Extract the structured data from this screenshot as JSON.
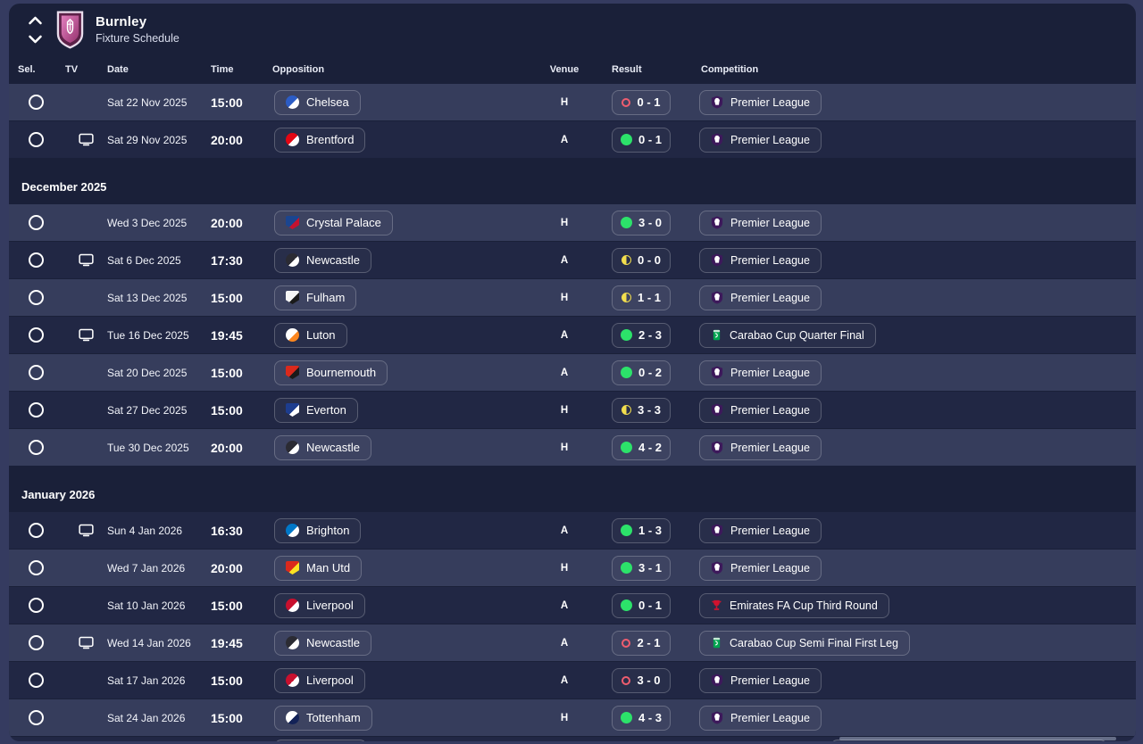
{
  "header": {
    "team_name": "Burnley",
    "subtitle": "Fixture Schedule"
  },
  "columns": {
    "sel": "Sel.",
    "tv": "TV",
    "date": "Date",
    "time": "Time",
    "opposition": "Opposition",
    "venue": "Venue",
    "result": "Result",
    "competition": "Competition"
  },
  "colors": {
    "outer": "#353b60",
    "panel": "#1a2039",
    "row_light": "#363d5c",
    "row_dark": "#212744",
    "win": "#2ce26a",
    "draw": "#f2de4e",
    "loss": "#ef5d6f",
    "premier_league": "#3d195b",
    "carabao_cup": "#00a550",
    "fa_cup": "#d2122e",
    "burnley_claret": "#5c2148",
    "burnley_pink": "#c9509a"
  },
  "table": {
    "items": [
      {
        "type": "match",
        "tv": false,
        "date": "Sat 22 Nov 2025",
        "time": "15:00",
        "opposition": "Chelsea",
        "venue": "H",
        "result": {
          "outcome": "loss",
          "score": "0 - 1"
        },
        "competition": "Premier League",
        "competition_icon": "premier-league",
        "crest": {
          "shape": "circle",
          "c1": "#2c5cc5",
          "c2": "#ffffff"
        }
      },
      {
        "type": "match",
        "tv": true,
        "date": "Sat 29 Nov 2025",
        "time": "20:00",
        "opposition": "Brentford",
        "venue": "A",
        "result": {
          "outcome": "win",
          "score": "0 - 1"
        },
        "competition": "Premier League",
        "competition_icon": "premier-league",
        "crest": {
          "shape": "circle",
          "c1": "#e30613",
          "c2": "#ffffff"
        }
      },
      {
        "type": "section",
        "label": "December 2025"
      },
      {
        "type": "match",
        "tv": false,
        "date": "Wed 3 Dec 2025",
        "time": "20:00",
        "opposition": "Crystal Palace",
        "venue": "H",
        "result": {
          "outcome": "win",
          "score": "3 - 0"
        },
        "competition": "Premier League",
        "competition_icon": "premier-league",
        "crest": {
          "shape": "shield",
          "c1": "#1b458f",
          "c2": "#c4122e"
        }
      },
      {
        "type": "match",
        "tv": true,
        "date": "Sat 6 Dec 2025",
        "time": "17:30",
        "opposition": "Newcastle",
        "venue": "A",
        "result": {
          "outcome": "draw",
          "score": "0 - 0"
        },
        "competition": "Premier League",
        "competition_icon": "premier-league",
        "crest": {
          "shape": "circle",
          "c1": "#2b2b33",
          "c2": "#ffffff"
        }
      },
      {
        "type": "match",
        "tv": false,
        "date": "Sat 13 Dec 2025",
        "time": "15:00",
        "opposition": "Fulham",
        "venue": "H",
        "result": {
          "outcome": "draw",
          "score": "1 - 1"
        },
        "competition": "Premier League",
        "competition_icon": "premier-league",
        "crest": {
          "shape": "shield",
          "c1": "#f5f5f5",
          "c2": "#1a1a1a"
        }
      },
      {
        "type": "match",
        "tv": true,
        "date": "Tue 16 Dec 2025",
        "time": "19:45",
        "opposition": "Luton",
        "venue": "A",
        "result": {
          "outcome": "win",
          "score": "2 - 3"
        },
        "competition": "Carabao Cup Quarter Final",
        "competition_icon": "carabao-cup",
        "crest": {
          "shape": "circle",
          "c1": "#ffffff",
          "c2": "#fb861f"
        }
      },
      {
        "type": "match",
        "tv": false,
        "date": "Sat 20 Dec 2025",
        "time": "15:00",
        "opposition": "Bournemouth",
        "venue": "A",
        "result": {
          "outcome": "win",
          "score": "0 - 2"
        },
        "competition": "Premier League",
        "competition_icon": "premier-league",
        "crest": {
          "shape": "shield",
          "c1": "#da291c",
          "c2": "#1a1a1a"
        }
      },
      {
        "type": "match",
        "tv": false,
        "date": "Sat 27 Dec 2025",
        "time": "15:00",
        "opposition": "Everton",
        "venue": "H",
        "result": {
          "outcome": "draw",
          "score": "3 - 3"
        },
        "competition": "Premier League",
        "competition_icon": "premier-league",
        "crest": {
          "shape": "shield",
          "c1": "#1d3d8f",
          "c2": "#ffffff"
        }
      },
      {
        "type": "match",
        "tv": false,
        "date": "Tue 30 Dec 2025",
        "time": "20:00",
        "opposition": "Newcastle",
        "venue": "H",
        "result": {
          "outcome": "win",
          "score": "4 - 2"
        },
        "competition": "Premier League",
        "competition_icon": "premier-league",
        "crest": {
          "shape": "circle",
          "c1": "#2b2b33",
          "c2": "#ffffff"
        }
      },
      {
        "type": "section",
        "label": "January 2026"
      },
      {
        "type": "match",
        "tv": true,
        "date": "Sun 4 Jan 2026",
        "time": "16:30",
        "opposition": "Brighton",
        "venue": "A",
        "result": {
          "outcome": "win",
          "score": "1 - 3"
        },
        "competition": "Premier League",
        "competition_icon": "premier-league",
        "crest": {
          "shape": "circle",
          "c1": "#0077c8",
          "c2": "#ffffff"
        }
      },
      {
        "type": "match",
        "tv": false,
        "date": "Wed 7 Jan 2026",
        "time": "20:00",
        "opposition": "Man Utd",
        "venue": "H",
        "result": {
          "outcome": "win",
          "score": "3 - 1"
        },
        "competition": "Premier League",
        "competition_icon": "premier-league",
        "crest": {
          "shape": "shield",
          "c1": "#da291c",
          "c2": "#fbe122"
        }
      },
      {
        "type": "match",
        "tv": false,
        "date": "Sat 10 Jan 2026",
        "time": "15:00",
        "opposition": "Liverpool",
        "venue": "A",
        "result": {
          "outcome": "win",
          "score": "0 - 1"
        },
        "competition": "Emirates FA Cup Third Round",
        "competition_icon": "fa-cup",
        "crest": {
          "shape": "circle",
          "c1": "#c8102e",
          "c2": "#ffffff"
        }
      },
      {
        "type": "match",
        "tv": true,
        "date": "Wed 14 Jan 2026",
        "time": "19:45",
        "opposition": "Newcastle",
        "venue": "A",
        "result": {
          "outcome": "loss",
          "score": "2 - 1"
        },
        "competition": "Carabao Cup Semi Final First Leg",
        "competition_icon": "carabao-cup",
        "crest": {
          "shape": "circle",
          "c1": "#2b2b33",
          "c2": "#ffffff"
        }
      },
      {
        "type": "match",
        "tv": false,
        "date": "Sat 17 Jan 2026",
        "time": "15:00",
        "opposition": "Liverpool",
        "venue": "A",
        "result": {
          "outcome": "loss",
          "score": "3 - 0"
        },
        "competition": "Premier League",
        "competition_icon": "premier-league",
        "crest": {
          "shape": "circle",
          "c1": "#c8102e",
          "c2": "#ffffff"
        }
      },
      {
        "type": "match",
        "tv": false,
        "date": "Sat 24 Jan 2026",
        "time": "15:00",
        "opposition": "Tottenham",
        "venue": "H",
        "result": {
          "outcome": "win",
          "score": "4 - 3"
        },
        "competition": "Premier League",
        "competition_icon": "premier-league",
        "crest": {
          "shape": "circle",
          "c1": "#ffffff",
          "c2": "#132257"
        }
      },
      {
        "type": "partial"
      }
    ]
  }
}
